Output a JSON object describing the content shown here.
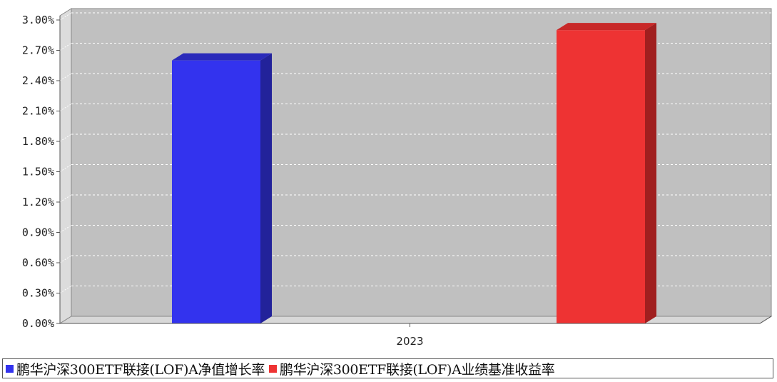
{
  "chart_data": {
    "type": "bar",
    "title": "",
    "xlabel": "",
    "ylabel": "",
    "categories": [
      "2023"
    ],
    "ylim": [
      0,
      3.0
    ],
    "yticks": [
      "0.00%",
      "0.30%",
      "0.60%",
      "0.90%",
      "1.20%",
      "1.50%",
      "1.80%",
      "2.10%",
      "2.40%",
      "2.70%",
      "3.00%"
    ],
    "grid": true,
    "legend_position": "bottom",
    "series": [
      {
        "name": "鹏华沪深300ETF联接(LOF)A净值增长率",
        "values": [
          2.6
        ],
        "color": "#3333ee"
      },
      {
        "name": "鹏华沪深300ETF联接(LOF)A业绩基准收益率",
        "values": [
          2.9
        ],
        "color": "#ee3333"
      }
    ]
  }
}
